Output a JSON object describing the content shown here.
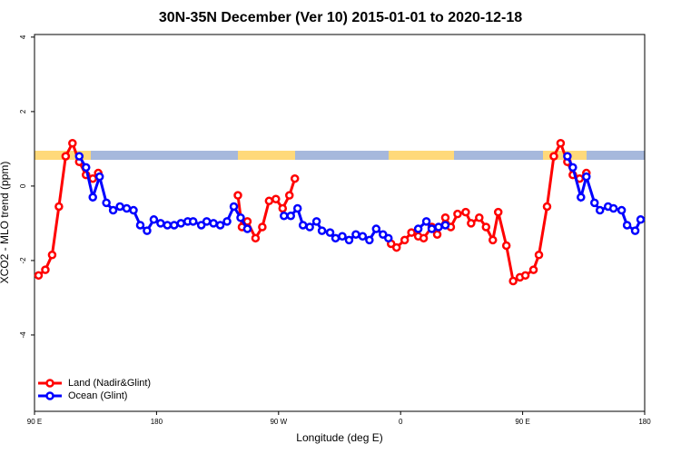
{
  "chart_data": {
    "type": "line",
    "title": "30N-35N December (Ver 10)   2015-01-01 to 2020-12-18",
    "x_label": "Longitude (deg E)",
    "y_label": "XCO2 - MLO trend (ppm)",
    "xlim": [
      90,
      540
    ],
    "ylim": [
      -6.05,
      4.07
    ],
    "xticks": [
      {
        "value": 90,
        "label": "90 E"
      },
      180,
      {
        "value": 270,
        "label": "90 W"
      },
      {
        "value": 360,
        "label": "0"
      },
      {
        "value": 450,
        "label": "90 E"
      },
      {
        "value": 540,
        "label": "180"
      }
    ],
    "yticks": [
      -4,
      -2,
      0,
      2,
      4
    ],
    "legend": "bottom-left",
    "series": [
      {
        "name": "Land (Nadir&Glint)",
        "color": "#ff0000",
        "x": [
          93,
          98,
          103,
          108,
          113,
          118,
          123,
          128,
          133,
          137,
          null,
          240,
          243,
          247,
          253,
          258,
          263,
          268,
          273,
          278,
          282,
          null,
          353,
          357,
          363,
          368,
          373,
          377,
          383,
          387,
          393,
          397,
          402,
          408,
          412,
          418,
          423,
          428,
          432,
          438,
          443,
          448,
          452,
          458,
          462,
          468,
          473,
          478,
          483,
          487,
          492,
          497
        ],
        "values": [
          -2.4,
          -2.25,
          -1.85,
          -0.55,
          0.8,
          1.15,
          0.65,
          0.3,
          0.2,
          0.35,
          null,
          -0.25,
          -1.1,
          -0.95,
          -1.4,
          -1.1,
          -0.4,
          -0.35,
          -0.6,
          -0.25,
          0.2,
          null,
          -1.55,
          -1.65,
          -1.45,
          -1.25,
          -1.35,
          -1.4,
          -1.1,
          -1.3,
          -0.85,
          -1.1,
          -0.75,
          -0.7,
          -1.0,
          -0.85,
          -1.1,
          -1.45,
          -0.7,
          -1.6,
          -2.55,
          -2.45,
          -2.4,
          -2.25,
          -1.85,
          -0.55,
          0.8,
          1.15,
          0.65,
          0.3,
          0.2,
          0.35
        ]
      },
      {
        "name": "Ocean (Glint)",
        "color": "#0000ff",
        "x": [
          123,
          128,
          133,
          138,
          143,
          148,
          153,
          158,
          163,
          168,
          173,
          178,
          183,
          188,
          193,
          198,
          203,
          207,
          213,
          217,
          222,
          227,
          232,
          237,
          242,
          247,
          null,
          274,
          279,
          284,
          288,
          293,
          298,
          302,
          308,
          312,
          317,
          322,
          327,
          332,
          337,
          342,
          347,
          351,
          null,
          373,
          379,
          383,
          388,
          393,
          null,
          483,
          487,
          493,
          497,
          503,
          507,
          513,
          517,
          523,
          527,
          533,
          537
        ],
        "values": [
          0.8,
          0.5,
          -0.3,
          0.25,
          -0.45,
          -0.65,
          -0.55,
          -0.6,
          -0.65,
          -1.05,
          -1.2,
          -0.9,
          -1.0,
          -1.05,
          -1.05,
          -1.0,
          -0.95,
          -0.95,
          -1.05,
          -0.95,
          -1.0,
          -1.05,
          -0.95,
          -0.55,
          -0.85,
          -1.15,
          null,
          -0.8,
          -0.8,
          -0.6,
          -1.05,
          -1.1,
          -0.95,
          -1.2,
          -1.25,
          -1.4,
          -1.35,
          -1.45,
          -1.3,
          -1.35,
          -1.45,
          -1.15,
          -1.3,
          -1.4,
          null,
          -1.15,
          -0.95,
          -1.15,
          -1.1,
          -1.05,
          null,
          0.8,
          0.5,
          -0.3,
          0.25,
          -0.45,
          -0.65,
          -0.55,
          -0.6,
          -0.65,
          -1.05,
          -1.2,
          -0.9
        ]
      }
    ]
  }
}
